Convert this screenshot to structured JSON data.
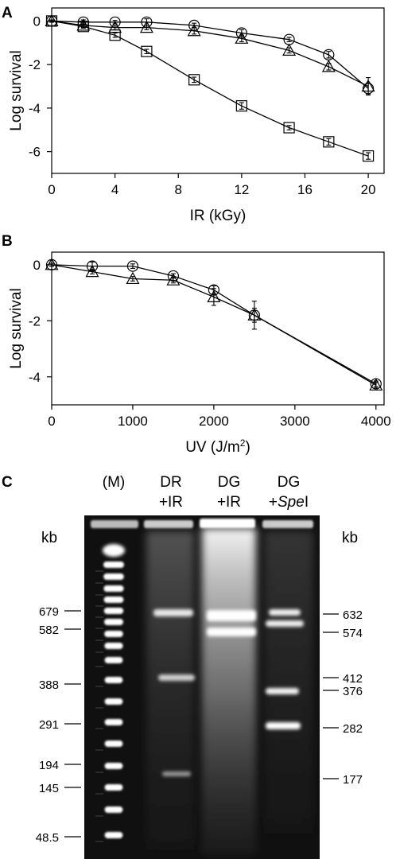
{
  "chart_data": [
    {
      "panel": "A",
      "type": "line",
      "xlabel": "IR (kGy)",
      "ylabel": "Log survival",
      "xlim": [
        0,
        21
      ],
      "ylim": [
        -7,
        0.6
      ],
      "xticks": [
        0,
        4,
        8,
        12,
        16,
        20
      ],
      "yticks": [
        0,
        -2,
        -4,
        -6
      ],
      "series": [
        {
          "marker": "circle",
          "x": [
            0,
            2,
            4,
            6,
            9,
            12,
            15,
            17.5,
            20
          ],
          "y": [
            0,
            -0.05,
            -0.05,
            -0.05,
            -0.2,
            -0.55,
            -0.85,
            -1.55,
            -3.1
          ],
          "err": [
            0.05,
            0.1,
            0.08,
            0.15,
            0.1,
            0.15,
            0.1,
            0.15,
            0.25
          ]
        },
        {
          "marker": "triangle",
          "x": [
            0,
            2,
            4,
            6,
            9,
            12,
            15,
            17.5,
            20
          ],
          "y": [
            0,
            -0.2,
            -0.3,
            -0.3,
            -0.45,
            -0.8,
            -1.35,
            -2.1,
            -3.0
          ],
          "err": [
            0.05,
            0.1,
            0.1,
            0.1,
            0.15,
            0.15,
            0.12,
            0.15,
            0.4
          ]
        },
        {
          "marker": "square",
          "x": [
            0,
            2,
            4,
            6,
            9,
            12,
            15,
            17.5,
            20
          ],
          "y": [
            0,
            -0.25,
            -0.65,
            -1.4,
            -2.7,
            -3.9,
            -4.9,
            -5.55,
            -6.2
          ],
          "err": [
            0.05,
            0.08,
            0.1,
            0.1,
            0.12,
            0.15,
            0.1,
            0.15,
            0.15
          ]
        }
      ]
    },
    {
      "panel": "B",
      "type": "line",
      "xlabel": "UV (J/m²)",
      "ylabel": "Log survival",
      "xlim": [
        0,
        4100
      ],
      "ylim": [
        -5,
        0.45
      ],
      "xticks": [
        0,
        1000,
        2000,
        3000,
        4000
      ],
      "yticks": [
        0,
        -2,
        -4
      ],
      "series": [
        {
          "marker": "circle",
          "x": [
            0,
            500,
            1000,
            1500,
            2000,
            2500,
            4000
          ],
          "y": [
            0,
            -0.05,
            -0.05,
            -0.4,
            -0.9,
            -1.8,
            -4.25
          ],
          "err": [
            0.05,
            0.15,
            0.08,
            0.08,
            0.15,
            0.25,
            0.1
          ]
        },
        {
          "marker": "triangle",
          "x": [
            0,
            500,
            1000,
            1500,
            2000,
            2500,
            4000
          ],
          "y": [
            0,
            -0.25,
            -0.5,
            -0.55,
            -1.15,
            -1.8,
            -4.3
          ],
          "err": [
            0.05,
            0.08,
            0.08,
            0.1,
            0.3,
            0.5,
            0.1
          ]
        }
      ]
    },
    {
      "panel": "C",
      "type": "gel",
      "unit_left": "kb",
      "unit_right": "kb",
      "lanes": [
        {
          "label": [
            "(M)"
          ]
        },
        {
          "label": [
            "DR",
            "+IR"
          ]
        },
        {
          "label": [
            "DG",
            "+IR"
          ]
        },
        {
          "label": [
            "DG",
            "+",
            "Spe",
            "I"
          ]
        }
      ],
      "left_markers": [
        "679",
        "582",
        "388",
        "291",
        "194",
        "145",
        "48.5"
      ],
      "right_markers": [
        "632",
        "574",
        "412",
        "376",
        "282",
        "177"
      ]
    }
  ]
}
